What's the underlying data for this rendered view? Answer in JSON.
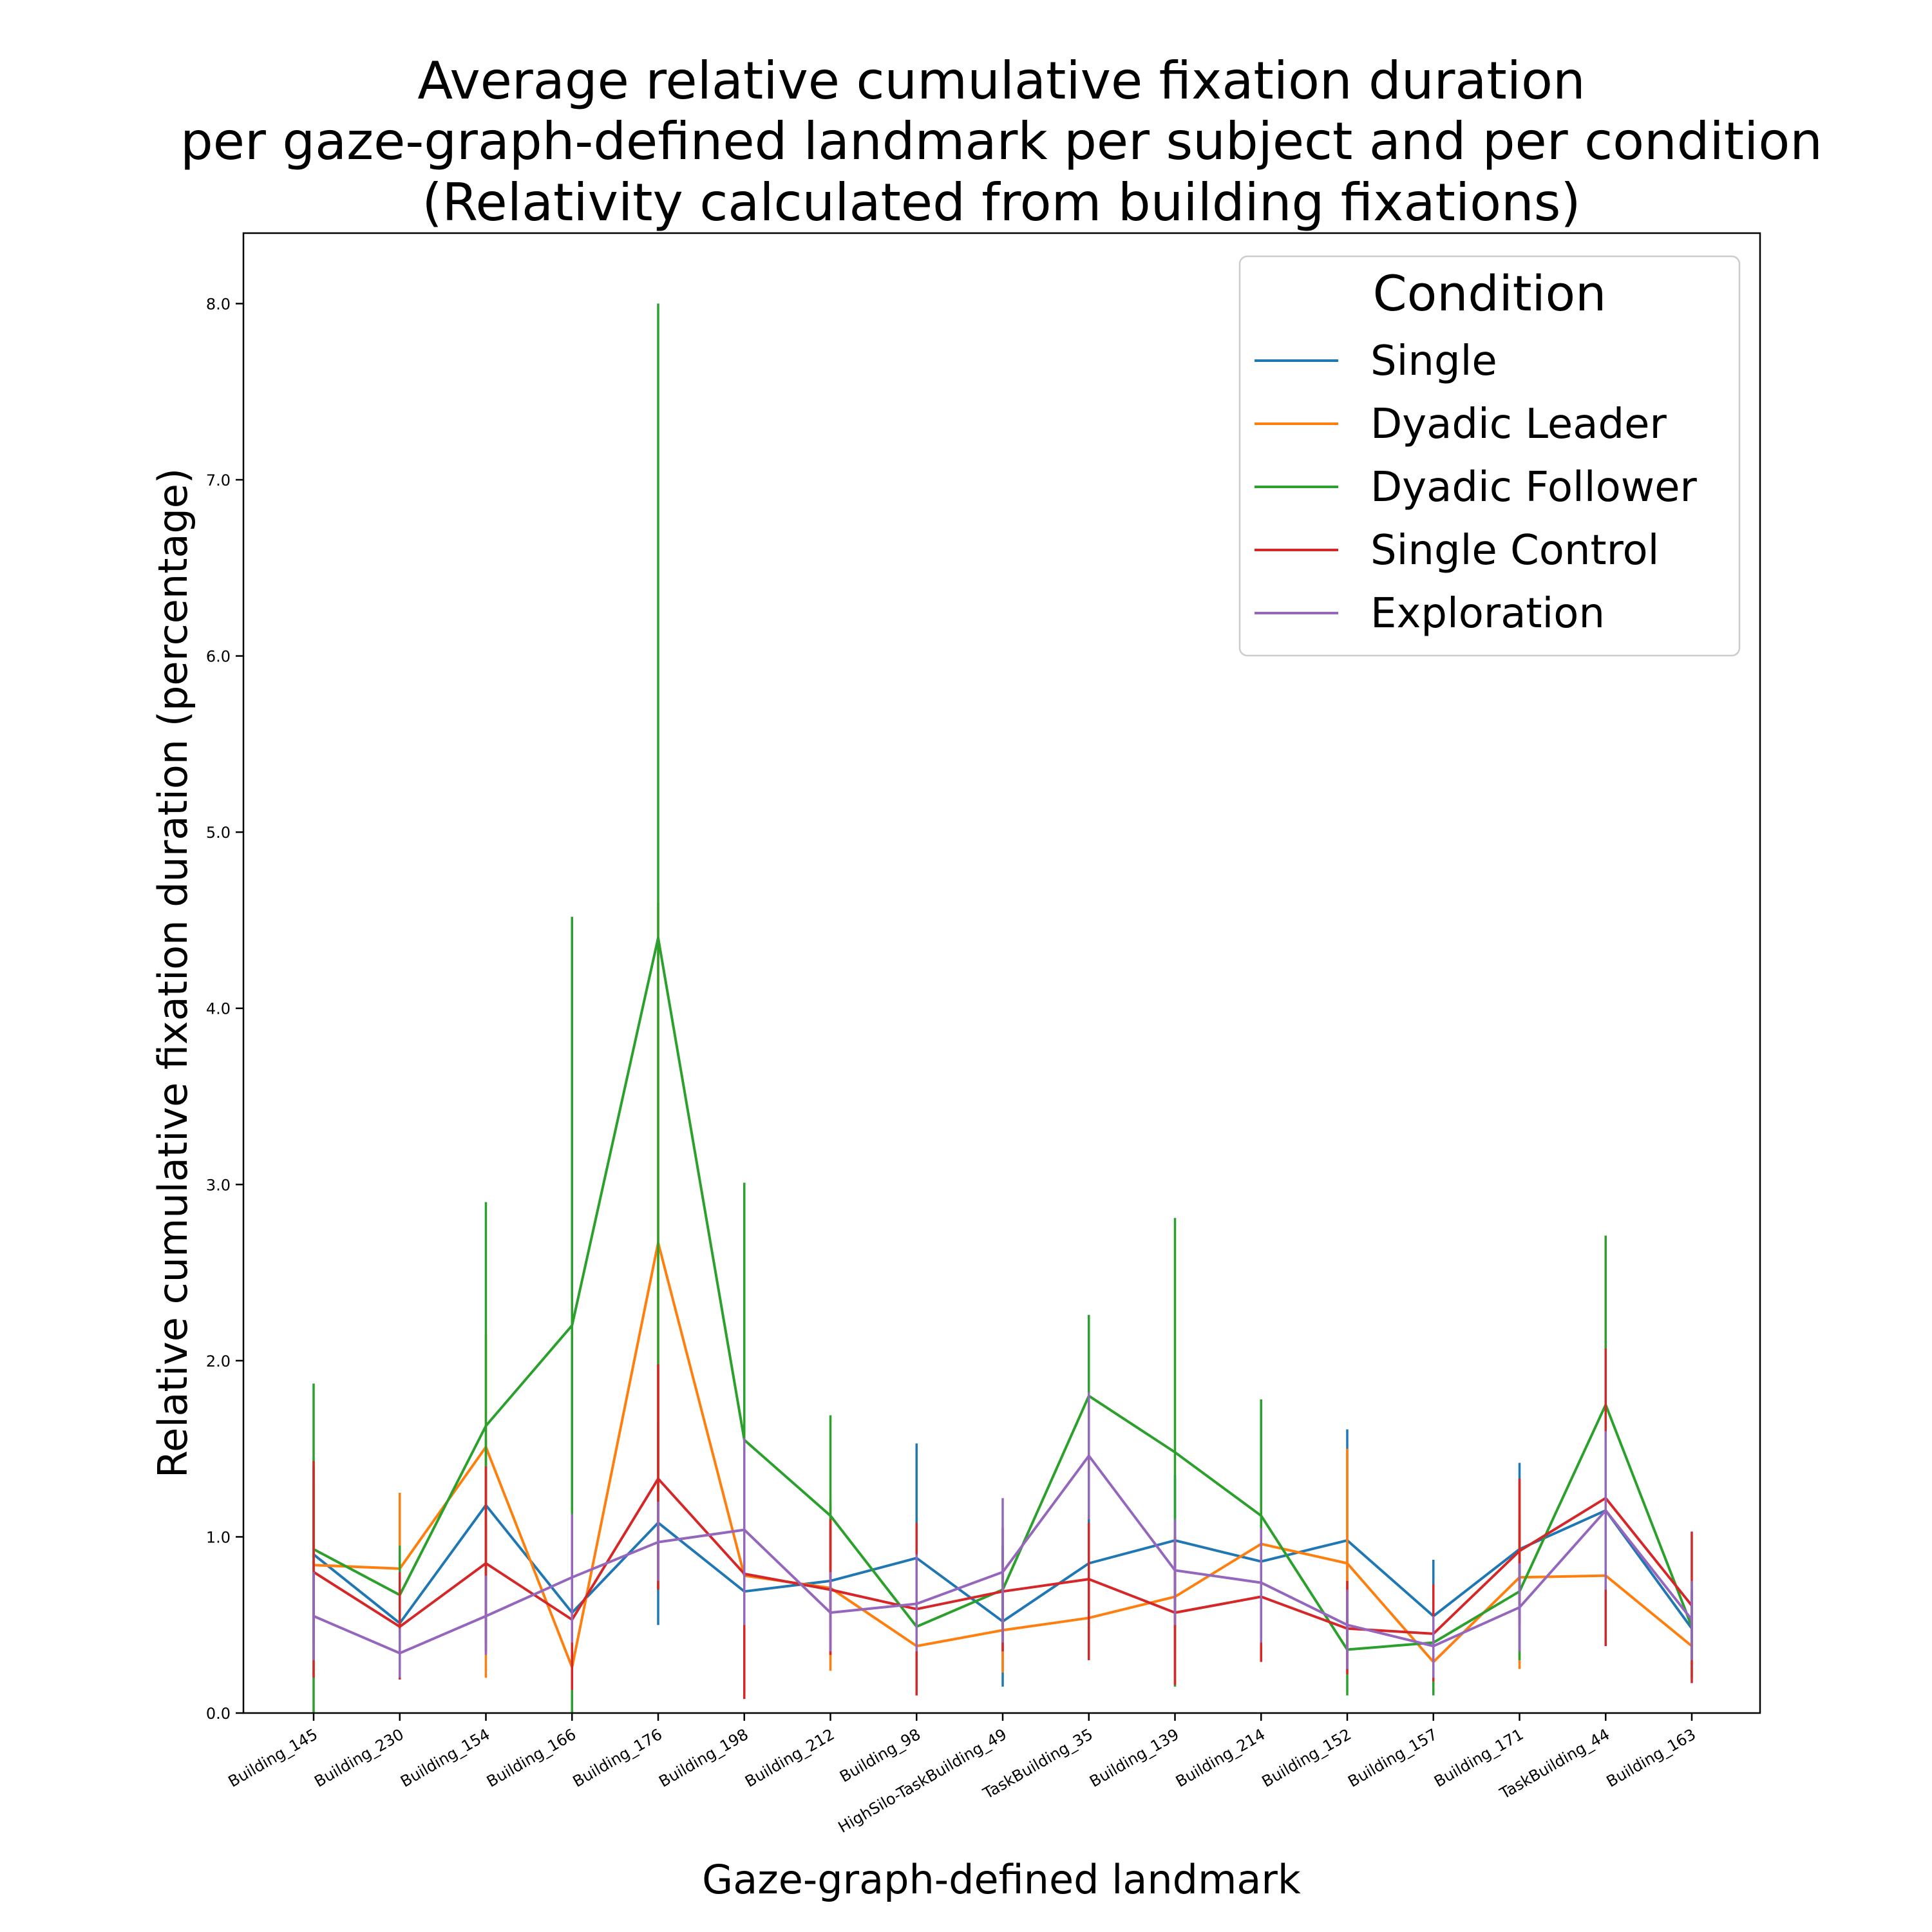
{
  "chart_data": {
    "type": "line",
    "title_lines": [
      "Average relative cumulative fixation duration",
      "per gaze-graph-defined landmark per subject and per condition",
      "(Relativity calculated from building fixations)"
    ],
    "xlabel": "Gaze-graph-defined landmark",
    "ylabel": "Relative cumulative fixation duration (percentage)",
    "ylim": [
      0,
      8.4
    ],
    "yticks": [
      0.0,
      1.0,
      2.0,
      3.0,
      4.0,
      5.0,
      6.0,
      7.0,
      8.0
    ],
    "ytick_labels": [
      "0.0",
      "1.0",
      "2.0",
      "3.0",
      "4.0",
      "5.0",
      "6.0",
      "7.0",
      "8.0"
    ],
    "grid": false,
    "legend": {
      "title": "Condition",
      "placement": "top-right"
    },
    "categories": [
      "Building_145",
      "Building_230",
      "Building_154",
      "Building_166",
      "Building_176",
      "Building_198",
      "Building_212",
      "Building_98",
      "HighSilo-TaskBuilding_49",
      "TaskBuilding_35",
      "Building_139",
      "Building_214",
      "Building_152",
      "Building_157",
      "Building_171",
      "TaskBuilding_44",
      "Building_163"
    ],
    "series": [
      {
        "name": "Single",
        "color": "#1f77b4",
        "values": [
          0.9,
          0.51,
          1.18,
          0.57,
          1.08,
          0.69,
          0.75,
          0.88,
          0.52,
          0.85,
          0.98,
          0.86,
          0.98,
          0.55,
          0.93,
          1.15,
          0.48
        ],
        "err_low": [
          0.45,
          0.3,
          0.75,
          0.3,
          0.5,
          0.4,
          0.45,
          0.4,
          0.15,
          0.55,
          0.6,
          0.55,
          0.35,
          0.25,
          0.55,
          0.75,
          0.3
        ],
        "err_high": [
          1.4,
          0.8,
          1.55,
          0.85,
          1.65,
          1.0,
          1.05,
          1.53,
          0.95,
          1.15,
          1.35,
          1.2,
          1.61,
          0.87,
          1.42,
          1.55,
          0.7
        ]
      },
      {
        "name": "Dyadic Leader",
        "color": "#ff7f0e",
        "values": [
          0.84,
          0.82,
          1.51,
          0.26,
          2.67,
          0.78,
          0.71,
          0.38,
          0.47,
          0.54,
          0.66,
          0.96,
          0.85,
          0.29,
          0.77,
          0.78,
          0.38
        ],
        "err_low": [
          0.4,
          0.4,
          0.2,
          0.12,
          0.7,
          0.3,
          0.24,
          0.1,
          0.23,
          0.3,
          0.35,
          0.55,
          0.3,
          0.12,
          0.25,
          0.45,
          0.2
        ],
        "err_high": [
          1.3,
          1.25,
          2.15,
          0.4,
          4.6,
          1.25,
          1.2,
          0.7,
          0.7,
          0.8,
          1.0,
          1.4,
          1.5,
          0.45,
          1.3,
          1.1,
          0.55
        ]
      },
      {
        "name": "Dyadic Follower",
        "color": "#2ca02c",
        "values": [
          0.93,
          0.67,
          1.63,
          2.2,
          4.4,
          1.55,
          1.12,
          0.49,
          0.7,
          1.8,
          1.48,
          1.12,
          0.36,
          0.4,
          0.69,
          1.75,
          0.49
        ],
        "err_low": [
          0.0,
          0.42,
          0.4,
          0.0,
          0.7,
          0.1,
          0.55,
          0.25,
          0.45,
          1.35,
          0.15,
          0.45,
          0.1,
          0.1,
          0.3,
          0.8,
          0.3
        ],
        "err_high": [
          1.87,
          0.95,
          2.9,
          4.52,
          8.0,
          3.01,
          1.69,
          0.75,
          0.95,
          2.26,
          2.81,
          1.78,
          0.62,
          0.7,
          1.1,
          2.71,
          0.7
        ]
      },
      {
        "name": "Single Control",
        "color": "#d62728",
        "values": [
          0.8,
          0.49,
          0.85,
          0.53,
          1.33,
          0.79,
          0.7,
          0.59,
          0.69,
          0.76,
          0.57,
          0.66,
          0.48,
          0.45,
          0.92,
          1.22,
          0.61
        ],
        "err_low": [
          0.2,
          0.19,
          0.35,
          0.13,
          0.7,
          0.08,
          0.33,
          0.1,
          0.35,
          0.3,
          0.16,
          0.29,
          0.22,
          0.18,
          0.5,
          0.38,
          0.17
        ],
        "err_high": [
          1.43,
          0.8,
          1.4,
          0.95,
          1.98,
          1.5,
          1.1,
          1.08,
          1.05,
          1.08,
          1.0,
          1.05,
          0.75,
          0.73,
          1.33,
          2.07,
          1.03
        ]
      },
      {
        "name": "Exploration",
        "color": "#9467bd",
        "values": [
          0.55,
          0.34,
          0.55,
          0.77,
          0.97,
          1.04,
          0.57,
          0.62,
          0.8,
          1.46,
          0.81,
          0.74,
          0.5,
          0.38,
          0.6,
          1.15,
          0.53
        ],
        "err_low": [
          0.3,
          0.2,
          0.33,
          0.4,
          0.75,
          0.5,
          0.35,
          0.35,
          0.4,
          1.1,
          0.5,
          0.4,
          0.25,
          0.2,
          0.35,
          0.7,
          0.3
        ],
        "err_high": [
          0.8,
          0.48,
          0.78,
          1.13,
          1.2,
          1.56,
          0.8,
          0.9,
          1.22,
          1.82,
          1.1,
          1.05,
          0.7,
          0.55,
          0.85,
          1.6,
          0.75
        ]
      }
    ]
  }
}
